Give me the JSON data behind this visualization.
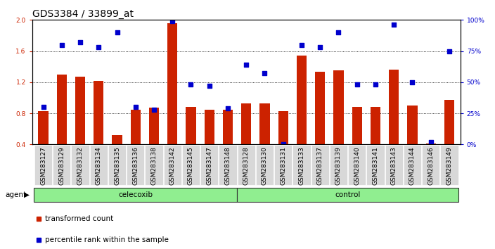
{
  "title": "GDS3384 / 33899_at",
  "samples": [
    "GSM283127",
    "GSM283129",
    "GSM283132",
    "GSM283134",
    "GSM283135",
    "GSM283136",
    "GSM283138",
    "GSM283142",
    "GSM283145",
    "GSM283147",
    "GSM283148",
    "GSM283128",
    "GSM283130",
    "GSM283131",
    "GSM283133",
    "GSM283137",
    "GSM283139",
    "GSM283140",
    "GSM283141",
    "GSM283143",
    "GSM283144",
    "GSM283146",
    "GSM283149"
  ],
  "bar_values": [
    0.83,
    1.3,
    1.27,
    1.22,
    0.52,
    0.85,
    0.87,
    1.96,
    0.88,
    0.85,
    0.85,
    0.93,
    0.93,
    0.83,
    1.54,
    1.33,
    1.35,
    0.88,
    0.88,
    1.36,
    0.9,
    0.41,
    0.97
  ],
  "scatter_values_pct": [
    30,
    80,
    82,
    78,
    90,
    30,
    28,
    99,
    48,
    47,
    29,
    64,
    57,
    0,
    80,
    78,
    90,
    48,
    48,
    96,
    50,
    2,
    75
  ],
  "group_labels": [
    "celecoxib",
    "control"
  ],
  "group_sizes": [
    11,
    12
  ],
  "bar_color": "#cc2200",
  "scatter_color": "#0000cc",
  "ylim_left": [
    0.4,
    2.0
  ],
  "yticks_left": [
    0.4,
    0.8,
    1.2,
    1.6,
    2.0
  ],
  "yticks_right": [
    0,
    25,
    50,
    75,
    100
  ],
  "right_yticklabels": [
    "0%",
    "25%",
    "50%",
    "75%",
    "100%"
  ],
  "background_color": "#ffffff",
  "title_fontsize": 10,
  "tick_fontsize": 6.5,
  "label_fontsize": 7.5,
  "agent_label": "agent",
  "legend_items": [
    "transformed count",
    "percentile rank within the sample"
  ]
}
